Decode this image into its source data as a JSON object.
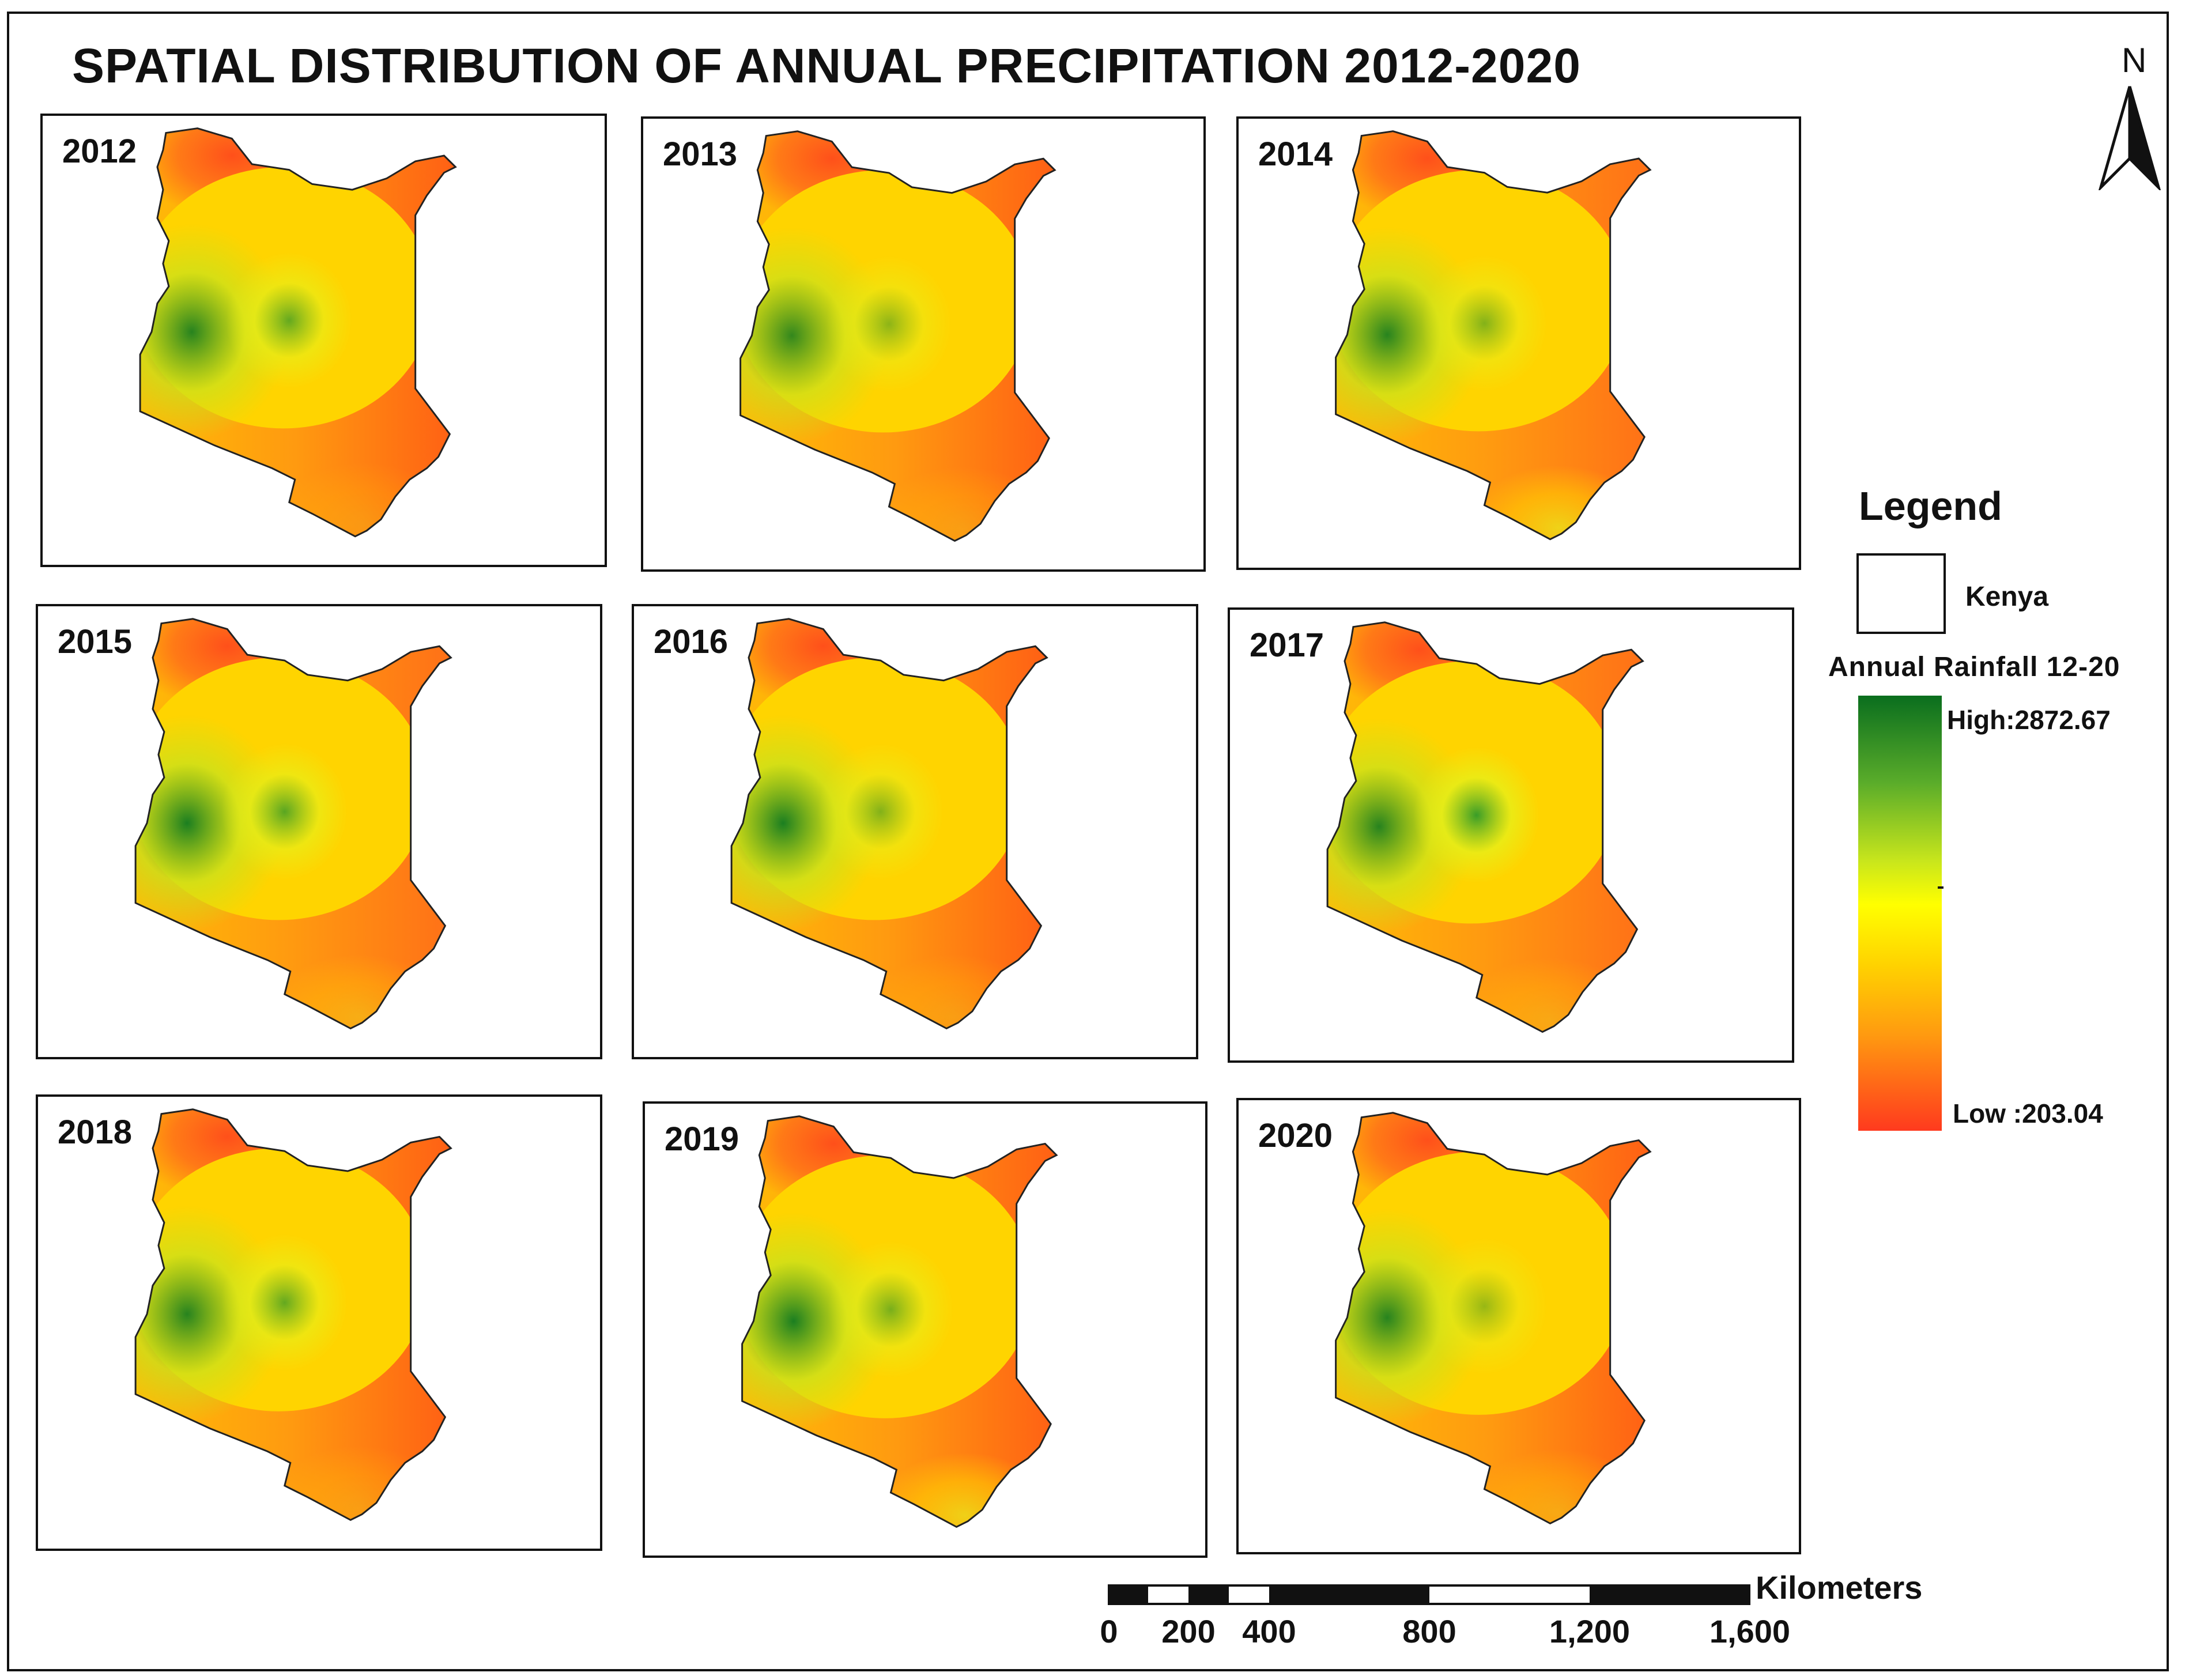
{
  "title": "SPATIAL DISTRIBUTION OF ANNUAL PRECIPITATION 2012-2020",
  "north_arrow": {
    "label": "N",
    "icon": "north-arrow-icon"
  },
  "panels": [
    {
      "year": "2012",
      "wet_west": 0.9,
      "wet_center": 0.75,
      "dry_east": 1.0,
      "coast_wet": 0.2
    },
    {
      "year": "2013",
      "wet_west": 0.85,
      "wet_center": 0.55,
      "dry_east": 1.0,
      "coast_wet": 0.25
    },
    {
      "year": "2014",
      "wet_west": 0.9,
      "wet_center": 0.6,
      "dry_east": 0.9,
      "coast_wet": 0.7
    },
    {
      "year": "2015",
      "wet_west": 0.95,
      "wet_center": 0.8,
      "dry_east": 0.85,
      "coast_wet": 0.35
    },
    {
      "year": "2016",
      "wet_west": 0.95,
      "wet_center": 0.6,
      "dry_east": 1.0,
      "coast_wet": 0.25
    },
    {
      "year": "2017",
      "wet_west": 0.9,
      "wet_center": 0.95,
      "dry_east": 0.85,
      "coast_wet": 0.3
    },
    {
      "year": "2018",
      "wet_west": 0.9,
      "wet_center": 0.75,
      "dry_east": 1.0,
      "coast_wet": 0.25
    },
    {
      "year": "2019",
      "wet_west": 0.95,
      "wet_center": 0.65,
      "dry_east": 1.0,
      "coast_wet": 0.7
    },
    {
      "year": "2020",
      "wet_west": 0.9,
      "wet_center": 0.5,
      "dry_east": 1.0,
      "coast_wet": 0.35
    }
  ],
  "legend": {
    "title": "Legend",
    "boundary_label": "Kenya",
    "ramp_title": "Annual Rainfall 12-20",
    "high_label": "High:2872.67",
    "low_label": "Low :203.04",
    "colors": {
      "high": "#0a6e1e",
      "mid": "#ffff00",
      "low": "#ff3a1e"
    }
  },
  "scale": {
    "unit": "Kilometers",
    "ticks": [
      "0",
      "200",
      "400",
      "800",
      "1,200",
      "1,600"
    ]
  }
}
